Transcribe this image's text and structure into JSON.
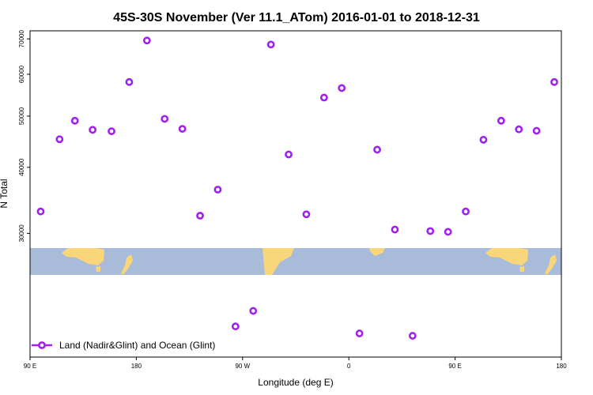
{
  "colors": {
    "series": "#a020f0",
    "ocean": "#a8bcda",
    "land": "#f9d679"
  },
  "chart_data": {
    "type": "scatter",
    "title": "45S-30S November (Ver 11.1_ATom)   2016-01-01 to 2018-12-31",
    "xlabel": "Longitude (deg E)",
    "ylabel": "N Total",
    "xlim": [
      90,
      540
    ],
    "ylim": [
      17500,
      72500
    ],
    "y_scale": "log",
    "x_ticks": [
      {
        "value": 90,
        "label": "90 E"
      },
      {
        "value": 180,
        "label": "180"
      },
      {
        "value": 270,
        "label": "90 W"
      },
      {
        "value": 360,
        "label": "0"
      },
      {
        "value": 450,
        "label": "90 E"
      },
      {
        "value": 540,
        "label": "180"
      }
    ],
    "y_ticks": [
      {
        "value": 30000,
        "label": "30000"
      },
      {
        "value": 40000,
        "label": "40000"
      },
      {
        "value": 50000,
        "label": "50000"
      },
      {
        "value": 60000,
        "label": "60000"
      },
      {
        "value": 70000,
        "label": "70000"
      }
    ],
    "grid": false,
    "legend_position": "bottom-left",
    "series": [
      {
        "name": "Land (Nadir&Glint) and Ocean (Glint)",
        "x": [
          99,
          115,
          128,
          143,
          159,
          174,
          189,
          204,
          219,
          234,
          249,
          264,
          279,
          294,
          309,
          324,
          339,
          354,
          369,
          384,
          399,
          414,
          429,
          444,
          459,
          474,
          489,
          504,
          519,
          534
        ],
        "y": [
          33000,
          45200,
          49000,
          47100,
          46800,
          58000,
          69500,
          49400,
          47300,
          32400,
          36300,
          20000,
          21400,
          68300,
          42300,
          32600,
          54200,
          56500,
          19400,
          43200,
          30500,
          19200,
          30300,
          30200,
          33000,
          45100,
          49000,
          47200,
          46900,
          58000
        ]
      }
    ]
  }
}
